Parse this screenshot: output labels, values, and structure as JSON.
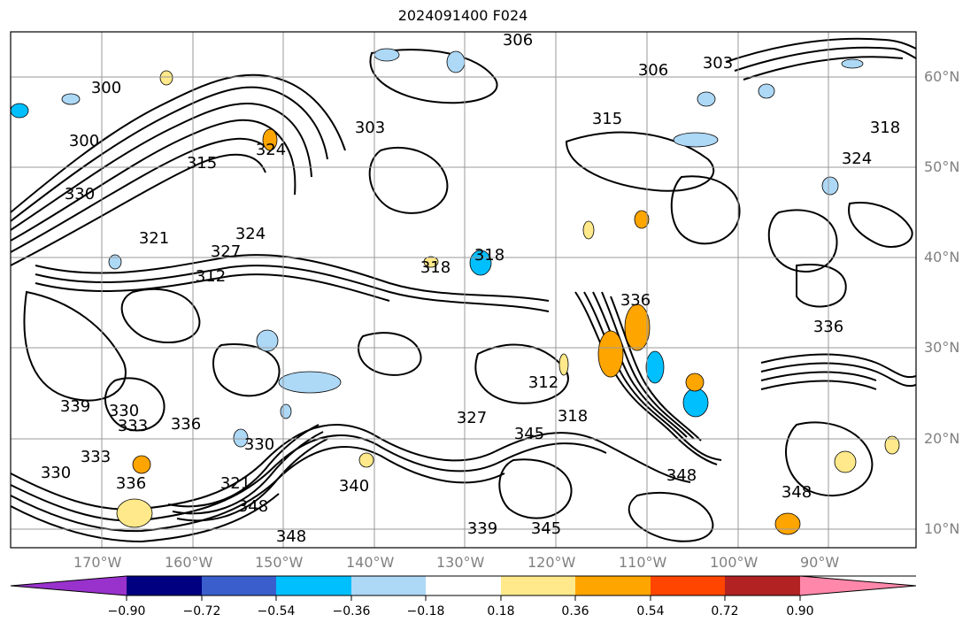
{
  "title": "2024091400 F024",
  "map": {
    "lat_labels": [
      "60°N",
      "50°N",
      "40°N",
      "30°N",
      "20°N",
      "10°N"
    ],
    "lon_labels": [
      "170°W",
      "160°W",
      "150°W",
      "140°W",
      "130°W",
      "120°W",
      "110°W",
      "100°W",
      "90°W"
    ],
    "contour_labels": [
      "306",
      "303",
      "306",
      "300",
      "300",
      "303",
      "315",
      "315",
      "324",
      "318",
      "330",
      "321",
      "327",
      "324",
      "312",
      "318",
      "318",
      "324",
      "336",
      "312",
      "318",
      "327",
      "333",
      "336",
      "330",
      "339",
      "330",
      "333",
      "336",
      "330",
      "348",
      "348",
      "339",
      "345",
      "348",
      "348",
      "321",
      "336",
      "345",
      "340"
    ]
  },
  "colorbar": {
    "ticks": [
      "−0.90",
      "−0.72",
      "−0.54",
      "−0.36",
      "−0.18",
      "0.18",
      "0.36",
      "0.54",
      "0.72",
      "0.90"
    ],
    "colors": [
      "#9932cc",
      "#000080",
      "#3a5fcd",
      "#00bfff",
      "#add8f6",
      "#ffffff",
      "#ffe98a",
      "#ffa500",
      "#ff4500",
      "#b22222",
      "#ff88aa"
    ]
  }
}
